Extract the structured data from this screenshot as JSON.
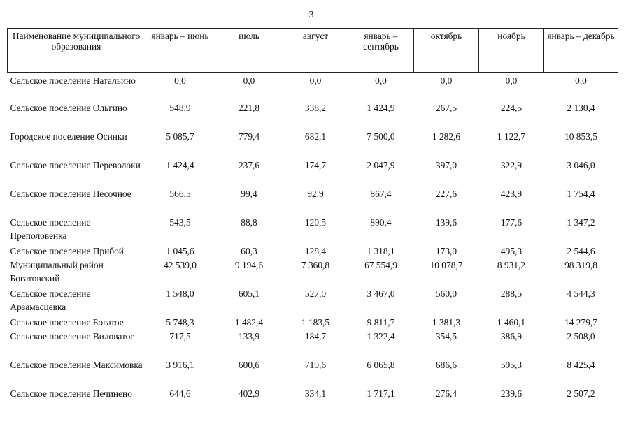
{
  "page_number": "3",
  "table": {
    "headers": [
      "Наименование муниципального образования",
      "январь – июнь",
      "июль",
      "август",
      "январь – сентябрь",
      "октябрь",
      "ноябрь",
      "январь – декабрь"
    ],
    "rows": [
      {
        "name": "Сельское поселение Натальино",
        "values": [
          "0,0",
          "0,0",
          "0,0",
          "0,0",
          "0,0",
          "0,0",
          "0,0"
        ]
      },
      {
        "name": "Сельское поселение Ольгино",
        "values": [
          "548,9",
          "221,8",
          "338,2",
          "1 424,9",
          "267,5",
          "224,5",
          "2 130,4"
        ]
      },
      {
        "name": "Городское поселение Осинки",
        "values": [
          "5 085,7",
          "779,4",
          "682,1",
          "7 500,0",
          "1 282,6",
          "1 122,7",
          "10 853,5"
        ]
      },
      {
        "name": "Сельское поселение Переволоки",
        "values": [
          "1 424,4",
          "237,6",
          "174,7",
          "2 047,9",
          "397,0",
          "322,9",
          "3 046,0"
        ]
      },
      {
        "name": "Сельское поселение Песочное",
        "values": [
          "566,5",
          "99,4",
          "92,9",
          "867,4",
          "227,6",
          "423,9",
          "1 754,4"
        ]
      },
      {
        "name": "Сельское поселение Преполовенка",
        "values": [
          "543,5",
          "88,8",
          "120,5",
          "890,4",
          "139,6",
          "177,6",
          "1 347,2"
        ]
      },
      {
        "name": "Сельское поселение Прибой",
        "values": [
          "1 045,6",
          "60,3",
          "128,4",
          "1 318,1",
          "173,0",
          "495,3",
          "2 544,6"
        ]
      },
      {
        "name": "Муниципальный район Богатовский",
        "values": [
          "42 539,0",
          "9 194,6",
          "7 360,8",
          "67 554,9",
          "10 078,7",
          "8 931,2",
          "98 319,8"
        ]
      },
      {
        "name": "Сельское поселение Арзамасцевка",
        "values": [
          "1 548,0",
          "605,1",
          "527,0",
          "3 467,0",
          "560,0",
          "288,5",
          "4 544,3"
        ]
      },
      {
        "name": "Сельское поселение Богатое",
        "values": [
          "5 748,3",
          "1 482,4",
          "1 183,5",
          "9 811,7",
          "1 381,3",
          "1 460,1",
          "14 279,7"
        ]
      },
      {
        "name": "Сельское поселение Виловатое",
        "values": [
          "717,5",
          "133,9",
          "184,7",
          "1 322,4",
          "354,5",
          "386,9",
          "2 508,0"
        ]
      },
      {
        "name": "Сельское поселение Максимовка",
        "values": [
          "3 916,1",
          "600,6",
          "719,6",
          "6 065,8",
          "686,6",
          "595,3",
          "8 425,4"
        ]
      },
      {
        "name": "Сельское поселение Печинено",
        "values": [
          "644,6",
          "402,9",
          "334,1",
          "1 717,1",
          "276,4",
          "239,6",
          "2 507,2"
        ]
      }
    ]
  }
}
